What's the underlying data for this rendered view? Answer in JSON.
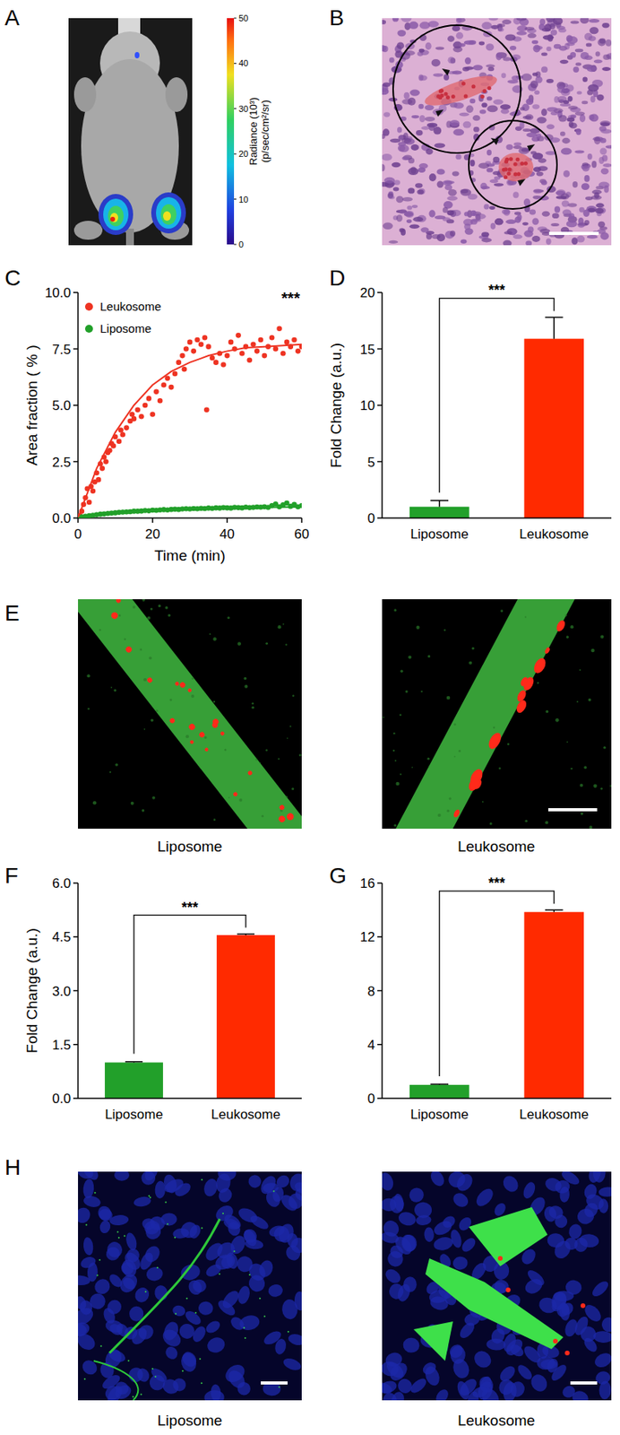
{
  "panel_labels": [
    "A",
    "B",
    "C",
    "D",
    "E",
    "F",
    "G",
    "H"
  ],
  "colorbar": {
    "range": [
      0,
      50
    ],
    "ticks": [
      0,
      10,
      20,
      30,
      40,
      50
    ],
    "label": [
      "Radiance (10³)",
      "(p/sec/cm²/sr)"
    ]
  },
  "image_captions": {
    "E": [
      "Liposome",
      "Leukosome"
    ],
    "H": [
      "Liposome",
      "Leukosome"
    ]
  },
  "chart_data": [
    {
      "type": "scatter",
      "x_label": "Time (min)",
      "y_label": "Area fraction ( % )",
      "xlim": [
        0,
        60
      ],
      "xticks": [
        0,
        20,
        40,
        60
      ],
      "ylim": [
        0,
        10
      ],
      "yticks": [
        {
          "value": 0,
          "label": "0.0"
        },
        {
          "value": 2.5,
          "label": "2.5"
        },
        {
          "value": 5,
          "label": "5.0"
        },
        {
          "value": 7.5,
          "label": "7.5"
        },
        {
          "value": 10,
          "label": "10.0"
        }
      ],
      "legend": "upper left",
      "annotations": [
        "***"
      ],
      "series": [
        {
          "name": "Leukosome",
          "color": "#ee3322",
          "marker": "circle",
          "x": [
            0.5,
            1,
            1.5,
            2,
            2.5,
            3,
            3.5,
            4,
            4.5,
            5,
            5.5,
            6,
            6.5,
            7,
            7.5,
            8,
            8.5,
            9,
            9.5,
            10,
            11,
            11.5,
            12,
            13,
            14,
            14.5,
            15,
            16,
            17,
            18,
            19,
            20,
            21,
            22,
            23,
            24,
            25,
            26,
            27,
            28,
            28.5,
            29,
            30,
            31,
            32,
            33,
            34,
            34.5,
            35,
            36,
            37,
            38,
            39,
            40,
            41,
            42,
            43,
            44,
            45,
            46,
            47,
            48,
            49,
            50,
            51,
            52,
            53,
            54,
            55,
            56,
            57,
            58,
            59,
            60
          ],
          "values": [
            0.1,
            0.3,
            0.6,
            0.9,
            1.3,
            0.7,
            1.4,
            1.2,
            1.6,
            2.0,
            1.7,
            2.4,
            2.2,
            2.7,
            2.5,
            2.9,
            3.0,
            3.3,
            3.2,
            3.6,
            3.4,
            3.9,
            3.7,
            4.0,
            4.3,
            4.6,
            4.4,
            4.8,
            4.5,
            5.0,
            5.3,
            4.6,
            5.6,
            5.2,
            5.9,
            6.2,
            5.8,
            6.4,
            6.9,
            7.2,
            6.6,
            7.5,
            7.8,
            7.4,
            7.9,
            7.7,
            8.0,
            4.8,
            7.6,
            7.1,
            6.9,
            7.3,
            6.8,
            7.2,
            7.8,
            7.5,
            8.1,
            7.3,
            7.6,
            7.0,
            7.7,
            7.4,
            7.9,
            7.2,
            7.6,
            8.0,
            7.5,
            8.4,
            7.3,
            7.8,
            7.6,
            7.9,
            7.4,
            7.6
          ]
        },
        {
          "name": "Liposome",
          "color": "#22a02a",
          "marker": "circle",
          "x": [
            0,
            1,
            2,
            3,
            4,
            5,
            6,
            7,
            8,
            9,
            10,
            11,
            12,
            13,
            14,
            15,
            16,
            17,
            18,
            19,
            20,
            21,
            22,
            23,
            24,
            25,
            26,
            27,
            28,
            29,
            30,
            31,
            32,
            33,
            34,
            35,
            36,
            37,
            38,
            39,
            40,
            41,
            42,
            43,
            44,
            45,
            46,
            47,
            48,
            49,
            50,
            51,
            52,
            53,
            54,
            55,
            56,
            57,
            58,
            59,
            60
          ],
          "values": [
            0.02,
            0.05,
            0.08,
            0.1,
            0.12,
            0.15,
            0.17,
            0.18,
            0.2,
            0.22,
            0.23,
            0.25,
            0.26,
            0.27,
            0.28,
            0.3,
            0.3,
            0.31,
            0.33,
            0.32,
            0.35,
            0.34,
            0.36,
            0.37,
            0.36,
            0.38,
            0.39,
            0.38,
            0.4,
            0.41,
            0.4,
            0.42,
            0.41,
            0.43,
            0.42,
            0.44,
            0.43,
            0.45,
            0.44,
            0.46,
            0.45,
            0.44,
            0.47,
            0.46,
            0.45,
            0.48,
            0.46,
            0.47,
            0.49,
            0.48,
            0.5,
            0.47,
            0.55,
            0.62,
            0.5,
            0.58,
            0.66,
            0.52,
            0.6,
            0.5,
            0.55
          ]
        },
        {
          "type": "line",
          "color": "#ee3322",
          "x": [
            0,
            5,
            10,
            15,
            20,
            25,
            30,
            35,
            40,
            45,
            50,
            55,
            60
          ],
          "values": [
            0,
            2.2,
            3.8,
            5.0,
            5.9,
            6.5,
            6.9,
            7.2,
            7.4,
            7.55,
            7.6,
            7.65,
            7.7
          ]
        },
        {
          "type": "line",
          "color": "#22a02a",
          "x": [
            0,
            5,
            10,
            15,
            20,
            25,
            30,
            35,
            40,
            45,
            50,
            55,
            60
          ],
          "values": [
            0,
            0.13,
            0.22,
            0.29,
            0.34,
            0.38,
            0.41,
            0.43,
            0.45,
            0.46,
            0.47,
            0.48,
            0.49
          ]
        }
      ]
    },
    {
      "type": "bar",
      "y_label": "Fold Change (a.u.)",
      "categories": [
        "Liposome",
        "Leukosome"
      ],
      "values": [
        1.0,
        15.9
      ],
      "errors": [
        0.55,
        1.9
      ],
      "colors": [
        "#22a02a",
        "#ff2a00"
      ],
      "ylim": [
        0,
        20
      ],
      "yticks": [
        0,
        5,
        10,
        15,
        20
      ],
      "annotations": [
        "***"
      ]
    },
    {
      "type": "bar",
      "y_label": "Fold Change (a.u.)",
      "categories": [
        "Liposome",
        "Leukosome"
      ],
      "values": [
        1.0,
        4.55
      ],
      "errors": [
        0.02,
        0.03
      ],
      "colors": [
        "#22a02a",
        "#ff2a00"
      ],
      "ylim": [
        0,
        6
      ],
      "yticks": [
        {
          "value": 0,
          "label": "0.0"
        },
        {
          "value": 1.5,
          "label": "1.5"
        },
        {
          "value": 3,
          "label": "3.0"
        },
        {
          "value": 4.5,
          "label": "4.5"
        },
        {
          "value": 6,
          "label": "6.0"
        }
      ],
      "annotations": [
        "***"
      ]
    },
    {
      "type": "bar",
      "categories": [
        "Liposome",
        "Leukosome"
      ],
      "values": [
        1.0,
        13.85
      ],
      "errors": [
        0.05,
        0.15
      ],
      "colors": [
        "#22a02a",
        "#ff2a00"
      ],
      "ylim": [
        0,
        16
      ],
      "yticks": [
        0,
        4,
        8,
        12,
        16
      ],
      "annotations": [
        "***"
      ]
    }
  ]
}
